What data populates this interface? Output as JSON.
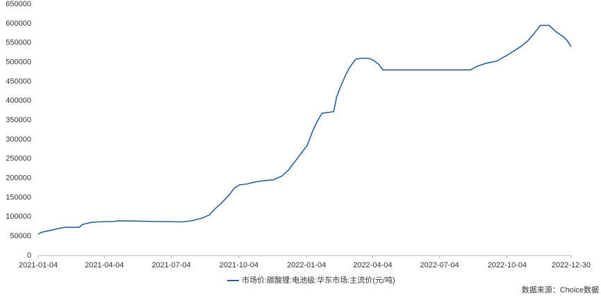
{
  "chart_data": {
    "type": "line",
    "x": [
      "2021-01-04",
      "2021-01-08",
      "2021-01-20",
      "2021-02-01",
      "2021-02-10",
      "2021-03-01",
      "2021-03-05",
      "2021-03-15",
      "2021-03-25",
      "2021-04-15",
      "2021-04-25",
      "2021-05-20",
      "2021-06-15",
      "2021-07-20",
      "2021-08-01",
      "2021-08-15",
      "2021-08-25",
      "2021-09-01",
      "2021-09-10",
      "2021-09-20",
      "2021-09-28",
      "2021-10-05",
      "2021-10-15",
      "2021-10-25",
      "2021-11-05",
      "2021-11-20",
      "2021-12-01",
      "2021-12-10",
      "2021-12-20",
      "2021-12-28",
      "2022-01-05",
      "2022-01-12",
      "2022-01-18",
      "2022-01-25",
      "2022-02-10",
      "2022-02-14",
      "2022-02-20",
      "2022-02-27",
      "2022-03-05",
      "2022-03-12",
      "2022-03-20",
      "2022-03-30",
      "2022-04-05",
      "2022-04-12",
      "2022-04-18",
      "2022-05-15",
      "2022-08-15",
      "2022-08-25",
      "2022-09-05",
      "2022-09-20",
      "2022-10-01",
      "2022-10-10",
      "2022-10-22",
      "2022-11-01",
      "2022-11-10",
      "2022-11-18",
      "2022-11-30",
      "2022-12-10",
      "2022-12-20",
      "2022-12-25",
      "2022-12-30"
    ],
    "series": [
      {
        "name": "市场价:碳酸锂:电池级:华东市场:主流价(元/吨)",
        "color": "#2f5d8a",
        "values": [
          55000,
          60000,
          65000,
          70000,
          73000,
          73000,
          80000,
          85000,
          87000,
          88000,
          90000,
          89000,
          88000,
          87000,
          90000,
          97000,
          105000,
          120000,
          135000,
          155000,
          175000,
          183000,
          185000,
          190000,
          193000,
          196000,
          205000,
          220000,
          245000,
          265000,
          285000,
          320000,
          345000,
          368000,
          372000,
          410000,
          440000,
          470000,
          490000,
          508000,
          510000,
          510000,
          505000,
          495000,
          480000,
          480000,
          480000,
          490000,
          497000,
          503000,
          515000,
          525000,
          540000,
          555000,
          575000,
          595000,
          595000,
          578000,
          565000,
          555000,
          540000
        ]
      }
    ],
    "xlim": [
      "2021-01-04",
      "2022-12-30"
    ],
    "xticks": [
      "2021-01-04",
      "2021-04-04",
      "2021-07-04",
      "2021-10-04",
      "2022-01-04",
      "2022-04-04",
      "2022-07-04",
      "2022-10-04",
      "2022-12-30"
    ],
    "ylim": [
      0,
      650000
    ],
    "yticks": [
      0,
      50000,
      100000,
      150000,
      200000,
      250000,
      300000,
      350000,
      400000,
      450000,
      500000,
      550000,
      600000,
      650000
    ],
    "grid": false,
    "source": "数据来源：Choice数据"
  }
}
